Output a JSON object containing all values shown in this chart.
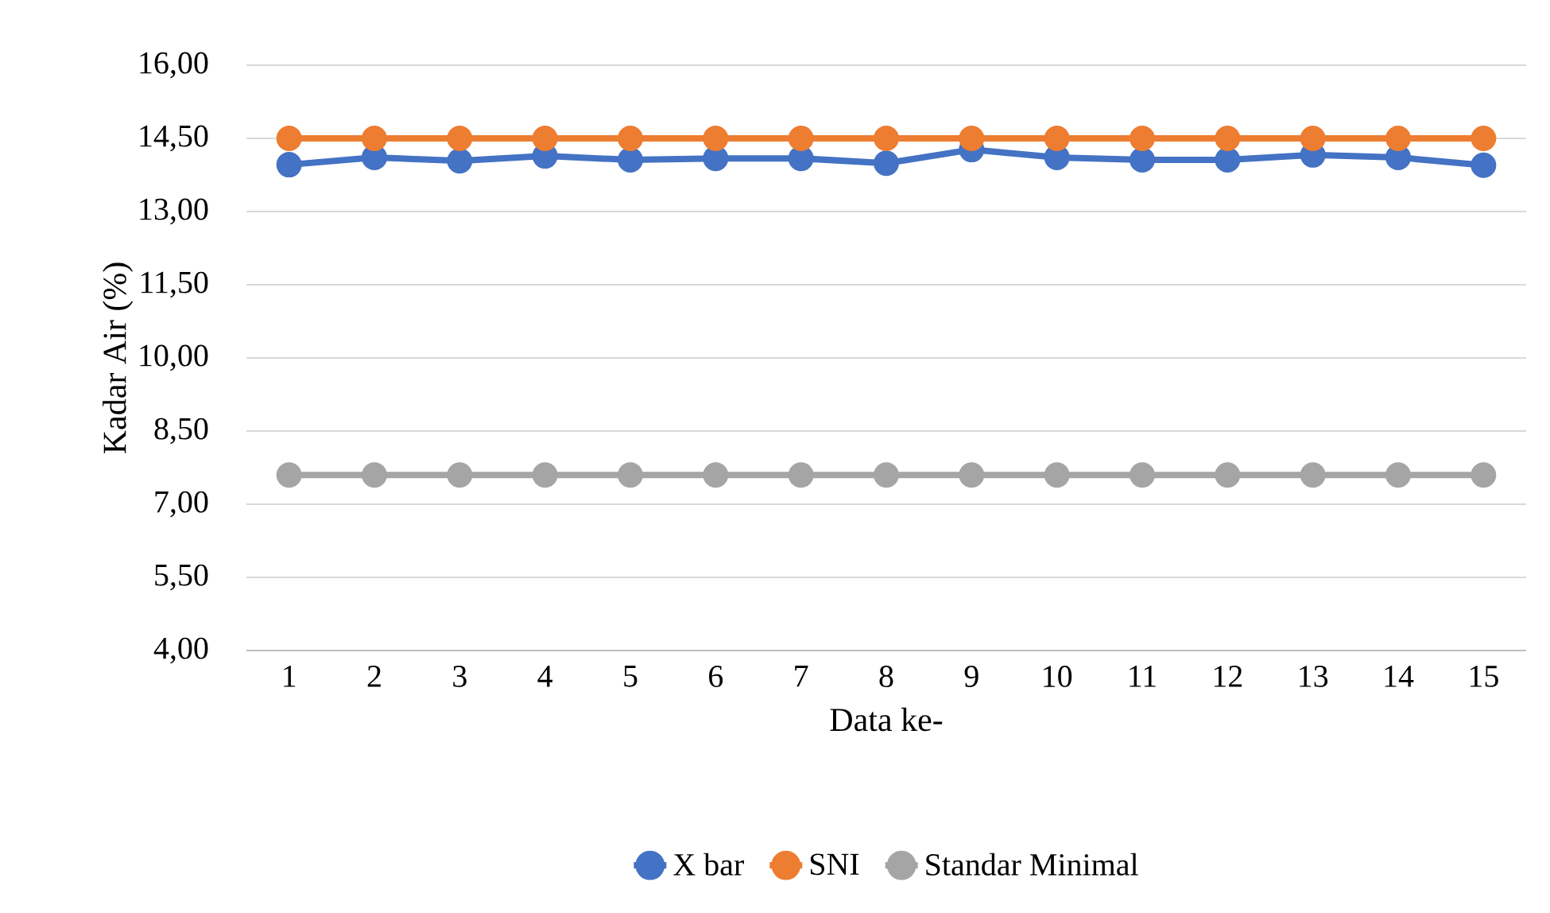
{
  "chart_data": {
    "type": "line",
    "xlabel": "Data ke-",
    "ylabel": "Kadar Air (%)",
    "categories": [
      "1",
      "2",
      "3",
      "4",
      "5",
      "6",
      "7",
      "8",
      "9",
      "10",
      "11",
      "12",
      "13",
      "14",
      "15"
    ],
    "series": [
      {
        "name": "X bar",
        "color": "#4472c4",
        "values": [
          13.96,
          14.11,
          14.04,
          14.14,
          14.06,
          14.09,
          14.09,
          13.99,
          14.27,
          14.11,
          14.06,
          14.06,
          14.16,
          14.11,
          13.95
        ]
      },
      {
        "name": "SNI",
        "color": "#ed7d31",
        "values": [
          14.5,
          14.5,
          14.5,
          14.5,
          14.5,
          14.5,
          14.5,
          14.5,
          14.5,
          14.5,
          14.5,
          14.5,
          14.5,
          14.5,
          14.5
        ]
      },
      {
        "name": "Standar Minimal",
        "color": "#a5a5a5",
        "values": [
          7.6,
          7.6,
          7.6,
          7.6,
          7.6,
          7.6,
          7.6,
          7.6,
          7.6,
          7.6,
          7.6,
          7.6,
          7.6,
          7.6,
          7.6
        ]
      }
    ],
    "ylim": [
      4,
      16
    ],
    "yticks": [
      {
        "value": 4,
        "label": "4,00"
      },
      {
        "value": 5.5,
        "label": "5,50"
      },
      {
        "value": 7,
        "label": "7,00"
      },
      {
        "value": 8.5,
        "label": "8,50"
      },
      {
        "value": 10,
        "label": "10,00"
      },
      {
        "value": 11.5,
        "label": "11,50"
      },
      {
        "value": 13,
        "label": "13,00"
      },
      {
        "value": 14.5,
        "label": "14,50"
      },
      {
        "value": 16,
        "label": "16,00"
      }
    ],
    "grid": "y",
    "legend": "bottom",
    "marker": "circle",
    "line_style": "solid"
  }
}
